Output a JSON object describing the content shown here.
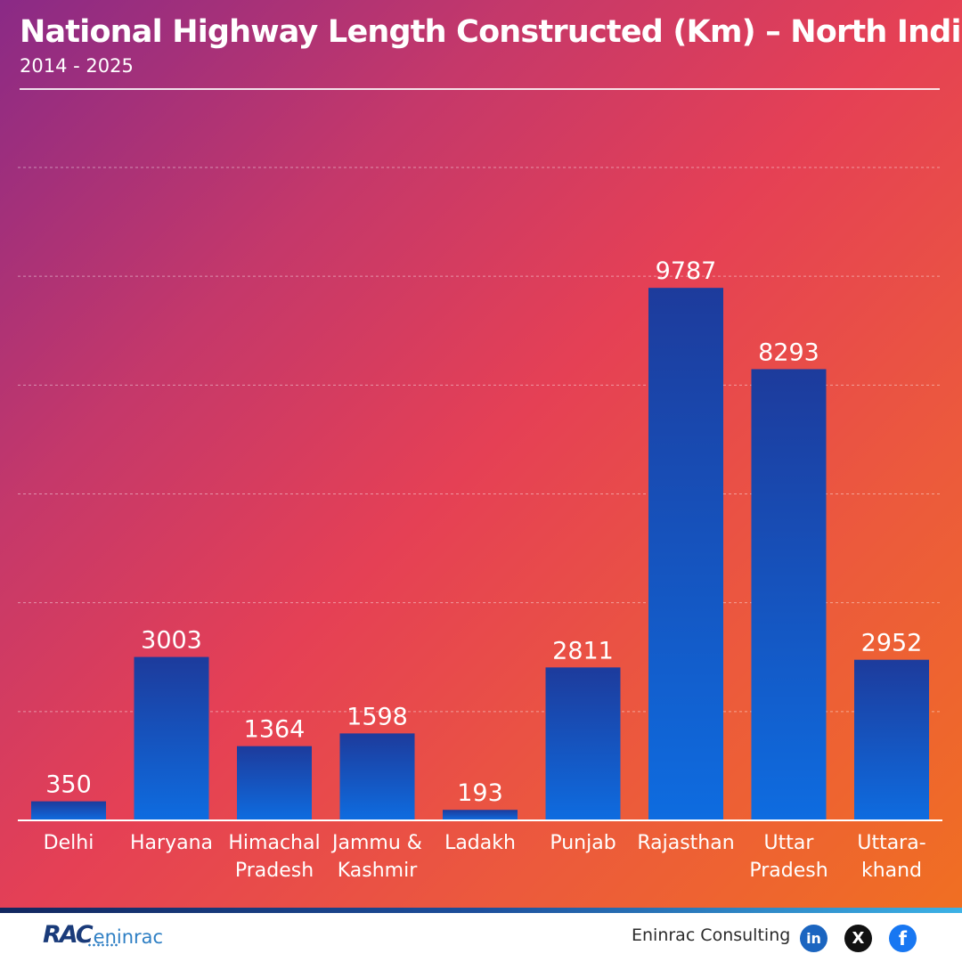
{
  "header": {
    "title": "National Highway Length Constructed (Km) – North India",
    "subtitle": "2014 - 2025"
  },
  "chart_data": {
    "type": "bar",
    "title": "National Highway Length Constructed (Km) – North India",
    "subtitle": "2014 - 2025",
    "xlabel": "",
    "ylabel": "",
    "ylim": [
      0,
      12000
    ],
    "grid": true,
    "categories": [
      [
        "Delhi"
      ],
      [
        "Haryana"
      ],
      [
        "Himachal",
        "Pradesh"
      ],
      [
        "Jammu &",
        "Kashmir"
      ],
      [
        "Ladakh"
      ],
      [
        "Punjab"
      ],
      [
        "Rajasthan"
      ],
      [
        "Uttar",
        "Pradesh"
      ],
      [
        "Uttara-",
        "khand"
      ]
    ],
    "values": [
      350,
      3003,
      1364,
      1598,
      193,
      2811,
      9787,
      8293,
      2952
    ],
    "data_labels": [
      "350",
      "3003",
      "1364",
      "1598",
      "193",
      "2811",
      "9787",
      "8293",
      "2952"
    ],
    "colors": {
      "bar_top": "#1d3b9c",
      "bar_bottom": "#0e6ce0",
      "baseline": "#ffffff",
      "grid": "#ffffff"
    }
  },
  "footer": {
    "logo_mark": "RAC",
    "logo_word": "eninrac",
    "company": "Eninrac Consulting",
    "social": [
      {
        "icon": "linkedin-icon",
        "glyph": "in"
      },
      {
        "icon": "x-icon",
        "glyph": "X"
      },
      {
        "icon": "facebook-icon",
        "glyph": "f"
      }
    ]
  }
}
